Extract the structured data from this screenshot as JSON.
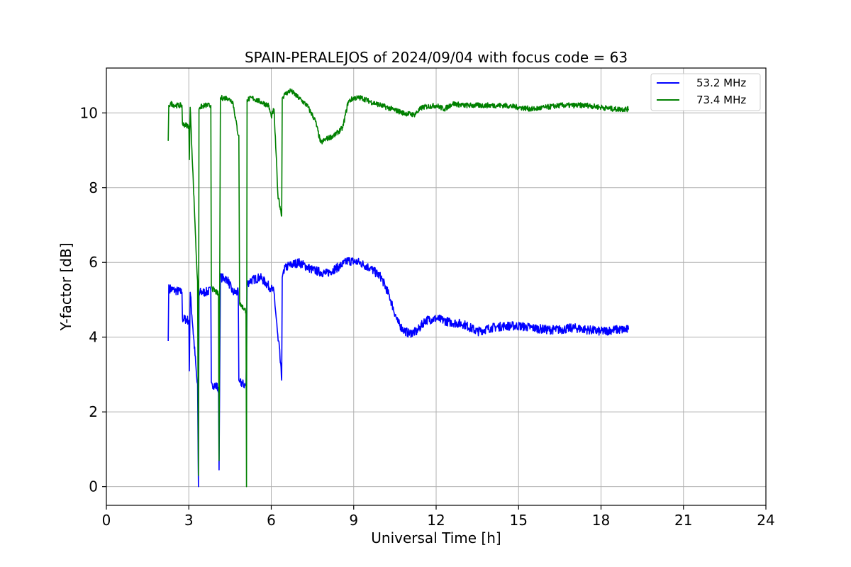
{
  "chart_data": {
    "type": "line",
    "title": "SPAIN-PERALEJOS of 2024/09/04 with focus code = 63",
    "xlabel": "Universal Time [h]",
    "ylabel": "Y-factor [dB]",
    "xlim": [
      0,
      24
    ],
    "ylim": [
      -0.5,
      11.2
    ],
    "xticks": [
      0,
      3,
      6,
      9,
      12,
      15,
      18,
      21,
      24
    ],
    "yticks": [
      0,
      2,
      4,
      6,
      8,
      10
    ],
    "grid": true,
    "legend_position": "top-right",
    "noise_amplitude": {
      "53.2 MHz": 0.12,
      "73.4 MHz": 0.07
    },
    "series": [
      {
        "name": "53.2 MHz",
        "color": "#0000ff",
        "x": [
          2.25,
          2.27,
          2.3,
          2.5,
          2.75,
          2.77,
          3.0,
          3.02,
          3.05,
          3.3,
          3.32,
          3.35,
          3.37,
          3.4,
          3.6,
          3.8,
          3.82,
          3.85,
          4.08,
          4.1,
          4.15,
          4.4,
          4.6,
          4.8,
          4.82,
          4.85,
          5.08,
          5.1,
          5.12,
          5.2,
          5.6,
          6.0,
          6.1,
          6.25,
          6.27,
          6.38,
          6.4,
          6.45,
          6.6,
          7.0,
          7.5,
          8.0,
          8.5,
          8.8,
          9.2,
          9.6,
          10.0,
          10.3,
          10.6,
          10.8,
          11.0,
          11.3,
          11.6,
          12.0,
          12.5,
          13.0,
          13.5,
          14.0,
          14.5,
          15.0,
          15.5,
          16.0,
          16.5,
          17.0,
          17.5,
          18.0,
          18.5,
          19.0
        ],
        "y": [
          3.9,
          5.4,
          5.3,
          5.25,
          5.2,
          4.5,
          4.45,
          3.1,
          5.2,
          2.8,
          2.75,
          0.0,
          5.1,
          5.2,
          5.2,
          5.25,
          2.8,
          2.75,
          2.65,
          0.45,
          5.6,
          5.55,
          5.2,
          5.2,
          2.85,
          2.8,
          2.7,
          3.5,
          5.4,
          5.5,
          5.6,
          5.3,
          5.2,
          3.9,
          3.9,
          2.85,
          5.6,
          5.8,
          5.9,
          6.0,
          5.8,
          5.7,
          5.9,
          6.05,
          6.0,
          5.85,
          5.6,
          5.1,
          4.4,
          4.2,
          4.1,
          4.15,
          4.45,
          4.5,
          4.4,
          4.35,
          4.15,
          4.25,
          4.3,
          4.3,
          4.25,
          4.2,
          4.2,
          4.25,
          4.2,
          4.15,
          4.2,
          4.2
        ]
      },
      {
        "name": "73.4 MHz",
        "color": "#008000",
        "x": [
          2.25,
          2.27,
          2.35,
          2.5,
          2.75,
          2.77,
          3.0,
          3.02,
          3.05,
          3.3,
          3.32,
          3.35,
          3.37,
          3.4,
          3.6,
          3.8,
          3.82,
          3.85,
          4.08,
          4.1,
          4.15,
          4.4,
          4.6,
          4.8,
          4.82,
          4.85,
          5.08,
          5.1,
          5.12,
          5.3,
          5.6,
          5.9,
          6.0,
          6.1,
          6.25,
          6.27,
          6.38,
          6.4,
          6.5,
          6.7,
          7.0,
          7.3,
          7.6,
          7.8,
          8.0,
          8.3,
          8.6,
          8.8,
          9.0,
          9.3,
          9.6,
          10.0,
          10.4,
          10.8,
          11.2,
          11.5,
          12.0,
          12.3,
          12.6,
          13.0,
          13.5,
          14.0,
          14.5,
          15.0,
          15.5,
          16.0,
          16.5,
          17.0,
          17.5,
          18.0,
          18.5,
          19.0
        ],
        "y": [
          9.25,
          10.2,
          10.25,
          10.2,
          10.2,
          9.7,
          9.65,
          8.75,
          10.15,
          5.7,
          5.5,
          0.3,
          10.1,
          10.15,
          10.2,
          10.2,
          5.4,
          5.3,
          5.15,
          0.7,
          10.4,
          10.4,
          10.3,
          9.4,
          9.4,
          4.9,
          4.7,
          0.0,
          10.35,
          10.4,
          10.3,
          10.2,
          9.9,
          10.1,
          7.7,
          7.7,
          7.25,
          10.4,
          10.5,
          10.6,
          10.4,
          10.2,
          9.8,
          9.2,
          9.3,
          9.4,
          9.6,
          10.3,
          10.4,
          10.4,
          10.3,
          10.2,
          10.1,
          10.0,
          9.95,
          10.15,
          10.2,
          10.1,
          10.25,
          10.2,
          10.2,
          10.2,
          10.2,
          10.15,
          10.1,
          10.15,
          10.2,
          10.2,
          10.2,
          10.15,
          10.1,
          10.1
        ]
      }
    ]
  }
}
